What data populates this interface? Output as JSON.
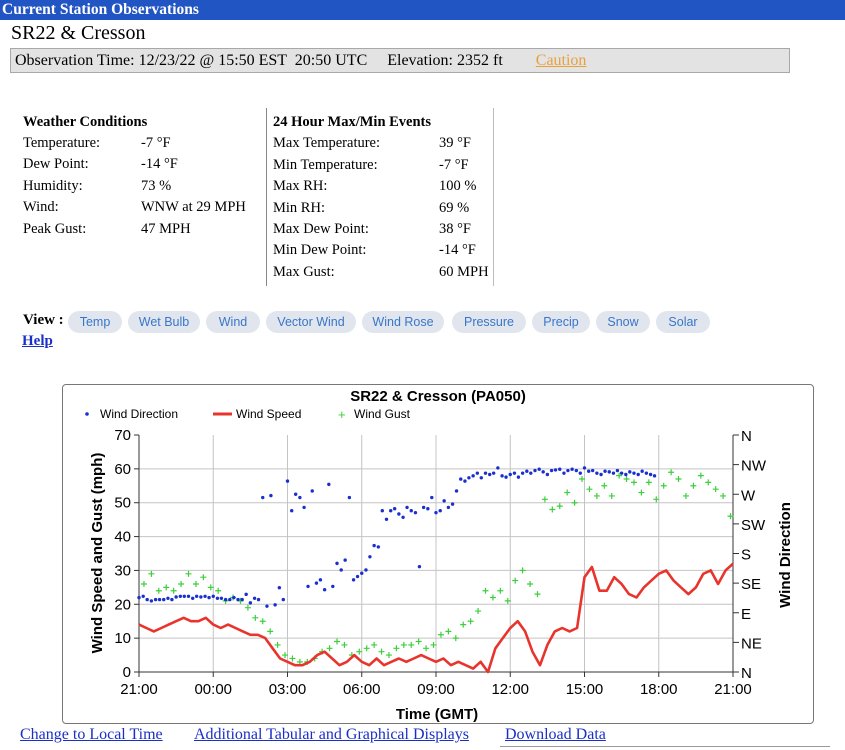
{
  "header": {
    "title": "Current Station Observations"
  },
  "station": {
    "name": "SR22 & Cresson"
  },
  "observation": {
    "time_text": "Observation Time: 12/23/22 @ 15:50 EST  20:50 UTC",
    "elevation_text": "Elevation: 2352 ft",
    "caution_label": "Caution"
  },
  "conditions": {
    "heading": "Weather Conditions",
    "rows": [
      {
        "label": "Temperature:",
        "value": "-7 °F"
      },
      {
        "label": "Dew Point:",
        "value": "-14 °F"
      },
      {
        "label": "Humidity:",
        "value": "73 %"
      },
      {
        "label": "Wind:",
        "value": "WNW at 29 MPH"
      },
      {
        "label": "Peak Gust:",
        "value": "47 MPH"
      }
    ]
  },
  "maxmin": {
    "heading": "24 Hour Max/Min Events",
    "rows": [
      {
        "label": "Max Temperature:",
        "value": "39 °F"
      },
      {
        "label": "Min Temperature:",
        "value": "-7 °F"
      },
      {
        "label": "Max RH:",
        "value": "100 %"
      },
      {
        "label": "Min RH:",
        "value": "69 %"
      },
      {
        "label": "Max Dew Point:",
        "value": "38 °F"
      },
      {
        "label": "Min Dew Point:",
        "value": "-14 °F"
      },
      {
        "label": "Max Gust:",
        "value": "60 MPH"
      }
    ]
  },
  "view": {
    "label": "View :",
    "tabs": [
      "Temp",
      "Wet Bulb",
      "Wind",
      "Vector Wind",
      "Wind Rose",
      "Pressure",
      "Precip",
      "Snow",
      "Solar"
    ],
    "help_label": "Help"
  },
  "footer": {
    "local_time_link": "Change to Local Time",
    "additional_link": "Additional Tabular and Graphical Displays",
    "download_link": "Download Data"
  },
  "colors": {
    "title_bar": "#2255c4",
    "speed": "#e8342c",
    "direction": "#1a2fd0",
    "gust": "#3ccf3c",
    "link": "#1a2fc8",
    "caution": "#e8a13a"
  },
  "chart_data": {
    "type": "line",
    "title": "SR22 & Cresson (PA050)",
    "xlabel": "Time (GMT)",
    "ylabel": "Wind Speed and Gust (mph)",
    "y2label": "Wind Direction",
    "x_tick_labels": [
      "21:00",
      "00:00",
      "03:00",
      "06:00",
      "09:00",
      "12:00",
      "15:00",
      "18:00",
      "21:00"
    ],
    "x_range_hours": [
      0,
      24
    ],
    "ylim": [
      0,
      70
    ],
    "y_ticks": [
      0,
      10,
      20,
      30,
      40,
      50,
      60,
      70
    ],
    "y2_tick_labels": [
      "N",
      "NE",
      "E",
      "SE",
      "S",
      "SW",
      "W",
      "NW",
      "N"
    ],
    "y2lim_degrees": [
      0,
      360
    ],
    "grid": true,
    "legend_position": "top",
    "series": [
      {
        "name": "Wind Direction",
        "style": "points",
        "x": [
          0.0,
          0.17,
          0.33,
          0.5,
          0.67,
          0.83,
          1.0,
          1.17,
          1.33,
          1.5,
          1.67,
          1.83,
          2.0,
          2.17,
          2.33,
          2.5,
          2.67,
          2.83,
          3.0,
          3.17,
          3.33,
          3.5,
          3.67,
          3.83,
          4.0,
          4.17,
          4.33,
          4.5,
          4.67,
          4.83,
          5.0,
          5.17,
          5.33,
          5.5,
          5.67,
          5.83,
          6.0,
          6.17,
          6.33,
          6.5,
          6.67,
          6.83,
          7.0,
          7.17,
          7.33,
          7.5,
          7.67,
          7.83,
          8.0,
          8.17,
          8.33,
          8.5,
          8.67,
          8.83,
          9.0,
          9.17,
          9.33,
          9.5,
          9.67,
          9.83,
          10.0,
          10.17,
          10.33,
          10.5,
          10.67,
          10.83,
          11.0,
          11.17,
          11.33,
          11.5,
          11.67,
          11.83,
          12.0,
          12.17,
          12.33,
          12.5,
          12.67,
          12.83,
          13.0,
          13.17,
          13.33,
          13.5,
          13.67,
          13.83,
          14.0,
          14.17,
          14.33,
          14.5,
          14.67,
          14.83,
          15.0,
          15.17,
          15.33,
          15.5,
          15.67,
          15.83,
          16.0,
          16.17,
          16.33,
          16.5,
          16.67,
          16.83,
          17.0,
          17.17,
          17.33,
          17.5,
          17.67,
          17.83,
          18.0,
          18.17,
          18.33,
          18.5,
          18.67,
          18.83,
          19.0,
          19.17,
          19.33,
          19.5,
          19.67,
          19.83,
          20.0,
          20.17,
          20.33,
          20.5,
          20.67,
          20.83
        ],
        "y": [
          113,
          115,
          110,
          108,
          110,
          110,
          110,
          112,
          110,
          114,
          115,
          115,
          115,
          112,
          115,
          114,
          115,
          113,
          115,
          112,
          112,
          110,
          110,
          113,
          110,
          110,
          118,
          105,
          112,
          110,
          265,
          100,
          268,
          102,
          128,
          110,
          290,
          245,
          270,
          265,
          250,
          130,
          275,
          135,
          140,
          125,
          285,
          130,
          165,
          155,
          170,
          265,
          140,
          145,
          150,
          155,
          175,
          192,
          190,
          245,
          232,
          245,
          248,
          240,
          235,
          250,
          245,
          242,
          160,
          250,
          248,
          265,
          242,
          245,
          260,
          250,
          255,
          275,
          293,
          290,
          295,
          298,
          302,
          295,
          302,
          300,
          302,
          310,
          298,
          296,
          300,
          302,
          296,
          302,
          305,
          302,
          306,
          308,
          304,
          300,
          306,
          307,
          308,
          302,
          306,
          308,
          306,
          302,
          310,
          305,
          306,
          302,
          300,
          305,
          304,
          302,
          306,
          302,
          300,
          304,
          302,
          300,
          305,
          302,
          300,
          298
        ]
      },
      {
        "name": "Wind Speed",
        "style": "line",
        "x": [
          0,
          0.3,
          0.6,
          0.9,
          1.2,
          1.5,
          1.8,
          2.1,
          2.4,
          2.7,
          3.0,
          3.3,
          3.6,
          3.9,
          4.2,
          4.5,
          4.8,
          5.1,
          5.4,
          5.7,
          6.0,
          6.3,
          6.6,
          6.9,
          7.2,
          7.5,
          7.8,
          8.1,
          8.4,
          8.7,
          9.0,
          9.3,
          9.6,
          9.9,
          10.2,
          10.5,
          10.8,
          11.1,
          11.4,
          11.7,
          12.0,
          12.3,
          12.6,
          12.9,
          13.2,
          13.5,
          13.8,
          14.1,
          14.4,
          14.7,
          15.0,
          15.3,
          15.6,
          15.9,
          16.2,
          16.5,
          16.8,
          17.1,
          17.4,
          17.7,
          18.0,
          18.3,
          18.6,
          18.9,
          19.2,
          19.5,
          19.8,
          20.1,
          20.4,
          20.7,
          21.0,
          21.3,
          21.6,
          21.9,
          22.2,
          22.5,
          22.8,
          23.1,
          23.4,
          23.7,
          24.0
        ],
        "y": [
          14,
          13,
          12,
          13,
          14,
          15,
          16,
          15,
          15,
          16,
          14,
          13,
          14,
          13,
          12,
          11,
          11,
          10,
          7,
          4,
          3,
          2,
          2,
          3,
          5,
          6,
          4,
          2,
          3,
          5,
          3,
          2,
          4,
          2,
          3,
          4,
          3,
          4,
          5,
          4,
          3,
          4,
          2,
          3,
          2,
          1,
          3,
          0,
          7,
          10,
          13,
          15,
          12,
          6,
          2,
          8,
          12,
          13,
          12,
          13,
          28,
          31,
          24,
          24,
          28,
          26,
          23,
          22,
          25,
          27,
          29,
          30,
          27,
          25,
          23,
          25,
          29,
          30,
          26,
          30,
          32
        ]
      },
      {
        "name": "Wind Gust",
        "style": "cross",
        "x": [
          0.2,
          0.5,
          0.8,
          1.1,
          1.4,
          1.7,
          2.0,
          2.3,
          2.6,
          2.9,
          3.2,
          3.5,
          3.8,
          4.1,
          4.4,
          4.7,
          5.0,
          5.3,
          5.6,
          5.9,
          6.2,
          6.5,
          6.8,
          7.1,
          7.4,
          7.7,
          8.0,
          8.3,
          8.6,
          8.9,
          9.2,
          9.5,
          9.8,
          10.1,
          10.4,
          10.7,
          11.0,
          11.3,
          11.6,
          11.9,
          12.2,
          12.5,
          12.8,
          13.1,
          13.4,
          13.7,
          14.0,
          14.3,
          14.6,
          14.9,
          15.2,
          15.5,
          15.8,
          16.1,
          16.4,
          16.7,
          17.0,
          17.3,
          17.6,
          17.9,
          18.2,
          18.5,
          18.8,
          19.1,
          19.4,
          19.7,
          20.0,
          20.3,
          20.6,
          20.9,
          21.2,
          21.5,
          21.8,
          22.1,
          22.4,
          22.7,
          23.0,
          23.3,
          23.6,
          23.9
        ],
        "y": [
          26,
          29,
          24,
          25,
          24,
          26,
          29,
          26,
          28,
          25,
          24,
          21,
          22,
          21,
          19,
          16,
          15,
          12,
          8,
          5,
          4,
          3,
          3,
          4,
          6,
          7,
          9,
          8,
          5,
          6,
          7,
          8,
          6,
          5,
          7,
          8,
          8,
          9,
          7,
          8,
          11,
          12,
          10,
          14,
          15,
          18,
          24,
          22,
          24,
          21,
          27,
          30,
          26,
          23,
          51,
          48,
          49,
          53,
          50,
          57,
          54,
          52,
          55,
          52,
          58,
          57,
          56,
          53,
          56,
          51,
          55,
          59,
          57,
          52,
          55,
          58,
          56,
          54,
          52,
          46
        ]
      }
    ]
  }
}
